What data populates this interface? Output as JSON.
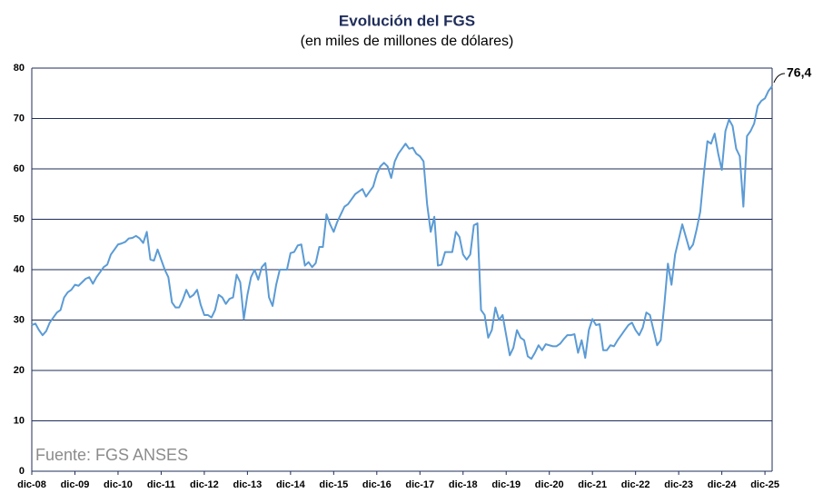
{
  "chart_data": {
    "type": "line",
    "title": "Evolución del FGS",
    "subtitle": "(en miles de millones de dólares)",
    "annotation": "76,4",
    "source": "Fuente: FGS ANSES",
    "categories": [
      "dic-08",
      null,
      null,
      null,
      null,
      null,
      null,
      null,
      null,
      null,
      null,
      null,
      "dic-09",
      null,
      null,
      null,
      null,
      null,
      null,
      null,
      null,
      null,
      null,
      null,
      "dic-10",
      null,
      null,
      null,
      null,
      null,
      null,
      null,
      null,
      null,
      null,
      null,
      "dic-11",
      null,
      null,
      null,
      null,
      null,
      null,
      null,
      null,
      null,
      null,
      null,
      "dic-12",
      null,
      null,
      null,
      null,
      null,
      null,
      null,
      null,
      null,
      null,
      null,
      "dic-13",
      null,
      null,
      null,
      null,
      null,
      null,
      null,
      null,
      null,
      null,
      null,
      "dic-14",
      null,
      null,
      null,
      null,
      null,
      null,
      null,
      null,
      null,
      null,
      null,
      "dic-15",
      null,
      null,
      null,
      null,
      null,
      null,
      null,
      null,
      null,
      null,
      null,
      "dic-16",
      null,
      null,
      null,
      null,
      null,
      null,
      null,
      null,
      null,
      null,
      null,
      "dic-17",
      null,
      null,
      null,
      null,
      null,
      null,
      null,
      null,
      null,
      null,
      null,
      "dic-18",
      null,
      null,
      null,
      null,
      null,
      null,
      null,
      null,
      null,
      null,
      null,
      "dic-19",
      null,
      null,
      null,
      null,
      null,
      null,
      null,
      null,
      null,
      null,
      null,
      "dic-20",
      null,
      null,
      null,
      null,
      null,
      null,
      null,
      null,
      null,
      null,
      null,
      "dic-21",
      null,
      null,
      null,
      null,
      null,
      null,
      null,
      null,
      null,
      null,
      null,
      "dic-22",
      null,
      null,
      null,
      null,
      null,
      null,
      null,
      null,
      null,
      null,
      null,
      "dic-23",
      null,
      null,
      null,
      null,
      null,
      null,
      null,
      null,
      null,
      null,
      null,
      "dic-24",
      null,
      null,
      null,
      null,
      null,
      null,
      null,
      null,
      null,
      null,
      null,
      "dic-25",
      null,
      null
    ],
    "values": [
      29,
      29.3,
      28,
      27,
      27.8,
      29.5,
      30.5,
      31.5,
      32,
      34.5,
      35.5,
      36,
      37,
      36.8,
      37.5,
      38.2,
      38.5,
      37.2,
      38.5,
      39.5,
      40.5,
      41,
      43,
      44,
      45,
      45.2,
      45.5,
      46.2,
      46.3,
      46.7,
      46.2,
      45.3,
      47.5,
      42,
      41.8,
      44,
      42,
      40,
      38.5,
      33.5,
      32.5,
      32.5,
      34,
      36,
      34.5,
      35,
      36,
      33,
      31,
      31,
      30.5,
      32,
      35,
      34.5,
      33.2,
      34.2,
      34.5,
      39,
      37.5,
      30.2,
      35,
      38.5,
      40,
      38,
      40.5,
      41.3,
      34.5,
      32.8,
      37,
      40,
      40,
      40,
      43.3,
      43.5,
      44.8,
      45,
      40.8,
      41.5,
      40.5,
      41.3,
      44.5,
      44.5,
      51,
      49,
      47.5,
      49.5,
      51,
      52.5,
      53,
      54,
      55,
      55.5,
      56,
      54.5,
      55.5,
      56.5,
      59,
      60.5,
      61.2,
      60.5,
      58.2,
      61.5,
      63,
      64,
      65,
      64,
      64.2,
      63,
      62.5,
      61.5,
      53,
      47.5,
      50.5,
      40.8,
      41,
      43.5,
      43.5,
      43.5,
      47.5,
      46.5,
      43,
      42,
      43,
      48.8,
      49.2,
      32,
      31,
      26.5,
      28,
      32.5,
      30,
      31,
      27,
      23,
      24.5,
      28,
      26.5,
      26,
      22.8,
      22.3,
      23.5,
      25,
      24,
      25.2,
      25,
      24.8,
      24.8,
      25.3,
      26.2,
      27,
      27,
      27.2,
      23.5,
      26,
      22.5,
      28,
      30.2,
      29,
      29.2,
      24,
      24,
      25,
      24.8,
      26,
      27,
      28,
      29,
      29.5,
      28,
      27,
      28.5,
      31.5,
      31,
      28,
      25,
      26,
      33,
      41.2,
      37,
      43,
      46,
      49,
      46.5,
      44,
      45,
      48,
      51.5,
      59,
      65.5,
      65,
      67,
      63,
      59.8,
      67.5,
      69.8,
      68.5,
      64,
      62.5,
      52.5,
      66.5,
      67.5,
      69,
      72.5,
      73.5,
      74,
      75.5,
      76.4
    ],
    "color": "#5b9bd5",
    "ylim": [
      0,
      80
    ],
    "yticks": [
      0,
      10,
      20,
      30,
      40,
      50,
      60,
      70,
      80
    ],
    "grid": true
  }
}
